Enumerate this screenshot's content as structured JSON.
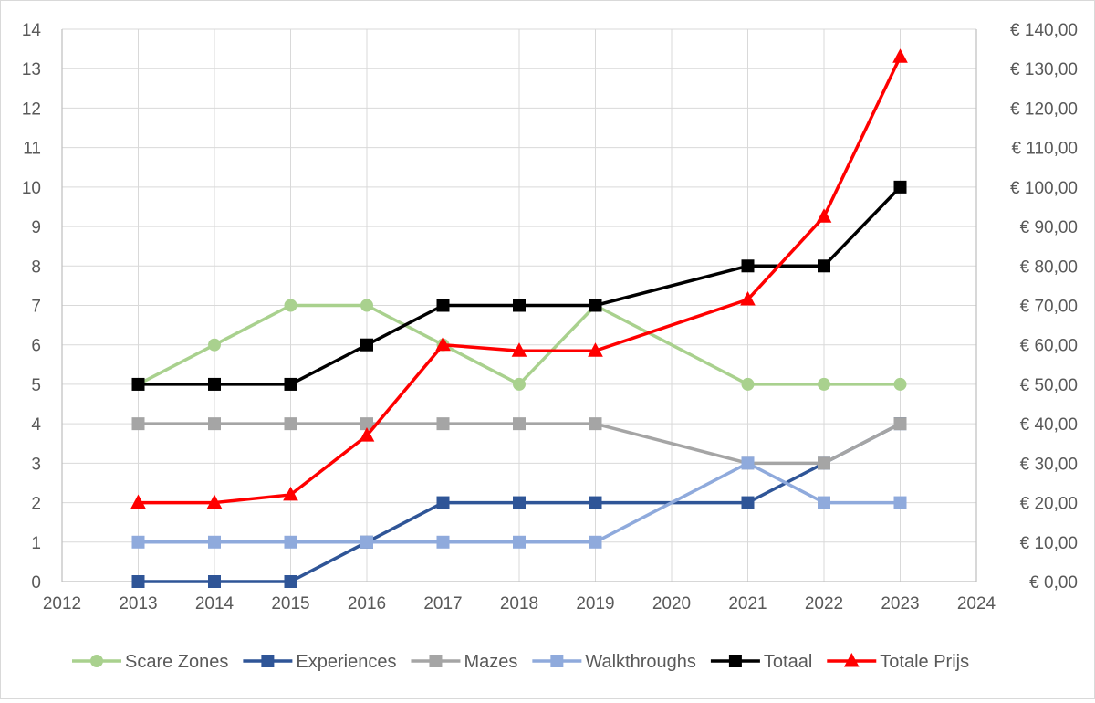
{
  "chart_data": {
    "type": "line",
    "title": "",
    "x": [
      2013,
      2014,
      2015,
      2016,
      2017,
      2018,
      2019,
      2021,
      2022,
      2023
    ],
    "xlim": [
      2012,
      2024
    ],
    "xticks": [
      "2012",
      "2013",
      "2014",
      "2015",
      "2016",
      "2017",
      "2018",
      "2019",
      "2020",
      "2021",
      "2022",
      "2023",
      "2024"
    ],
    "ylim_left": [
      0,
      14
    ],
    "yticks_left": [
      "0",
      "1",
      "2",
      "3",
      "4",
      "5",
      "6",
      "7",
      "8",
      "9",
      "10",
      "11",
      "12",
      "13",
      "14"
    ],
    "ylim_right": [
      0,
      140
    ],
    "yticks_right": [
      "€ 0,00",
      "€ 10,00",
      "€ 20,00",
      "€ 30,00",
      "€ 40,00",
      "€ 50,00",
      "€ 60,00",
      "€ 70,00",
      "€ 80,00",
      "€ 90,00",
      "€ 100,00",
      "€ 110,00",
      "€ 120,00",
      "€ 130,00",
      "€ 140,00"
    ],
    "grid": true,
    "legend_position": "bottom",
    "series": [
      {
        "name": "Scare Zones",
        "axis": "left",
        "color": "#a9d18e",
        "marker": "circle",
        "values": [
          5,
          6,
          7,
          7,
          6,
          5,
          7,
          5,
          5,
          5
        ]
      },
      {
        "name": "Experiences",
        "axis": "left",
        "color": "#2f5597",
        "marker": "square",
        "values": [
          0,
          0,
          0,
          1,
          2,
          2,
          2,
          2,
          3,
          4
        ]
      },
      {
        "name": "Mazes",
        "axis": "left",
        "color": "#a5a5a5",
        "marker": "square",
        "values": [
          4,
          4,
          4,
          4,
          4,
          4,
          4,
          3,
          3,
          4
        ]
      },
      {
        "name": "Walkthroughs",
        "axis": "left",
        "color": "#8faadc",
        "marker": "square",
        "values": [
          1,
          1,
          1,
          1,
          1,
          1,
          1,
          3,
          2,
          2
        ]
      },
      {
        "name": "Totaal",
        "axis": "left",
        "color": "#000000",
        "marker": "square",
        "values": [
          5,
          5,
          5,
          6,
          7,
          7,
          7,
          8,
          8,
          10
        ]
      },
      {
        "name": "Totale Prijs",
        "axis": "right",
        "color": "#ff0000",
        "marker": "triangle",
        "values": [
          20,
          20,
          22,
          37,
          60,
          58.5,
          58.5,
          71.5,
          92.5,
          133
        ]
      }
    ]
  }
}
